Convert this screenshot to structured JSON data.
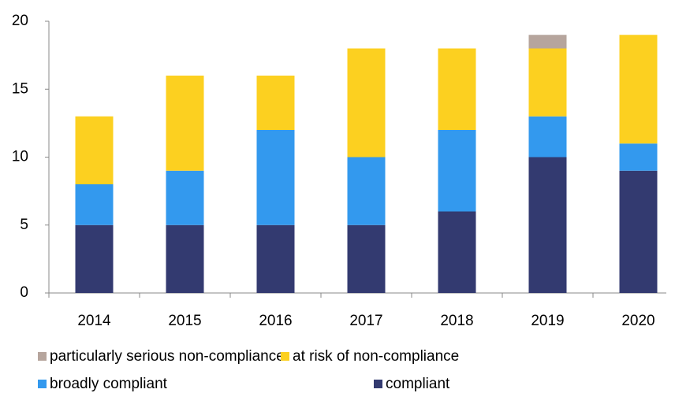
{
  "chart_data": {
    "type": "stacked-bar",
    "categories": [
      "2014",
      "2015",
      "2016",
      "2017",
      "2018",
      "2019",
      "2020"
    ],
    "series": [
      {
        "name": "particularly serious non-compliance",
        "color": "#b6a59d",
        "values": [
          0,
          0,
          0,
          0,
          0,
          1,
          0
        ]
      },
      {
        "name": "at risk of non-compliance",
        "color": "#fcd020",
        "values": [
          5,
          7,
          4,
          8,
          6,
          5,
          8
        ]
      },
      {
        "name": "broadly compliant",
        "color": "#3399ee",
        "values": [
          3,
          4,
          7,
          5,
          6,
          3,
          2
        ]
      },
      {
        "name": "compliant",
        "color": "#333a70",
        "values": [
          5,
          5,
          5,
          5,
          6,
          10,
          9
        ]
      }
    ],
    "ylim": [
      0,
      20
    ],
    "yticks": [
      0,
      5,
      10,
      15,
      20
    ],
    "grid": false
  }
}
